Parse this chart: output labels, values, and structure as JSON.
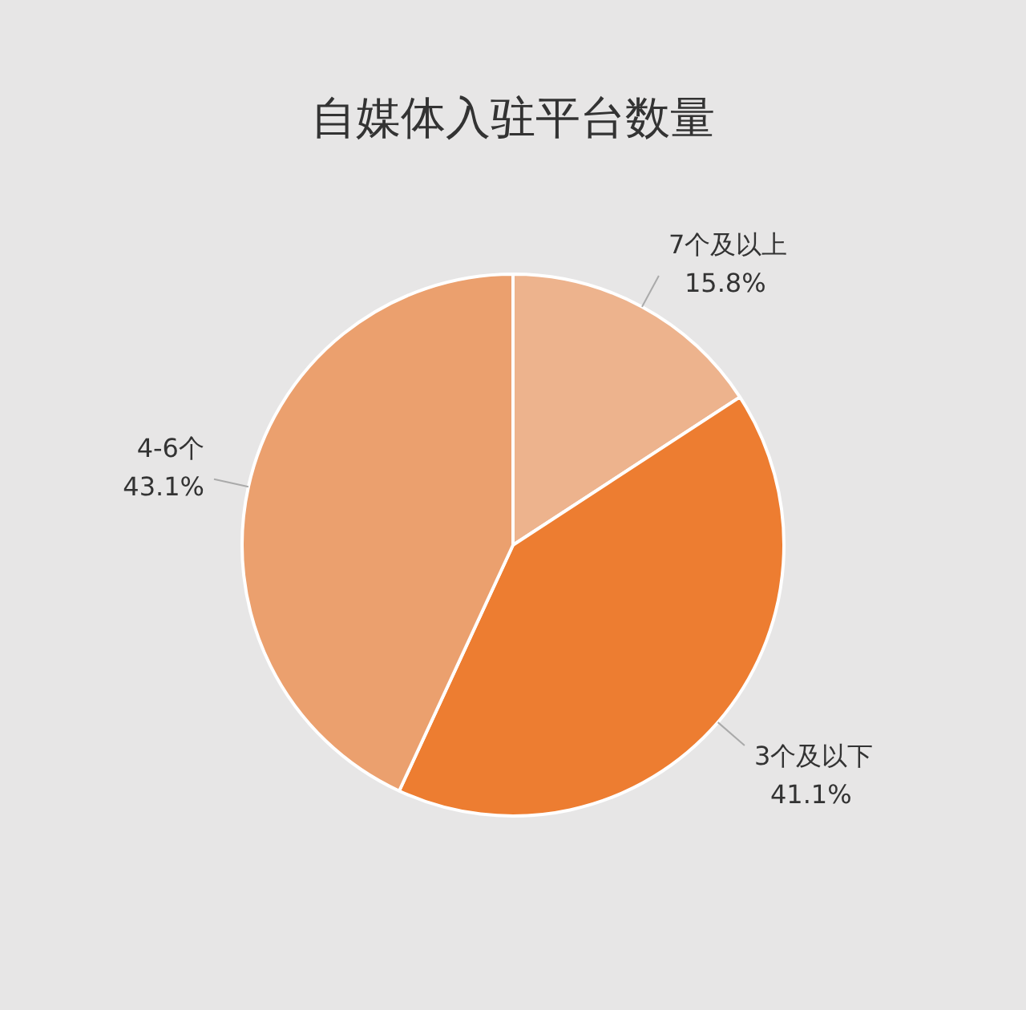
{
  "chart_data": {
    "type": "pie",
    "title": "自媒体入驻平台数量",
    "categories": [
      "7个及以上",
      "3个及以下",
      "4-6个"
    ],
    "values": [
      15.8,
      41.1,
      43.1
    ],
    "value_labels": [
      "15.8%",
      "41.1%",
      "43.1%"
    ],
    "colors": [
      "#edb38d",
      "#ed7d31",
      "#eba06e"
    ],
    "legend": false
  }
}
